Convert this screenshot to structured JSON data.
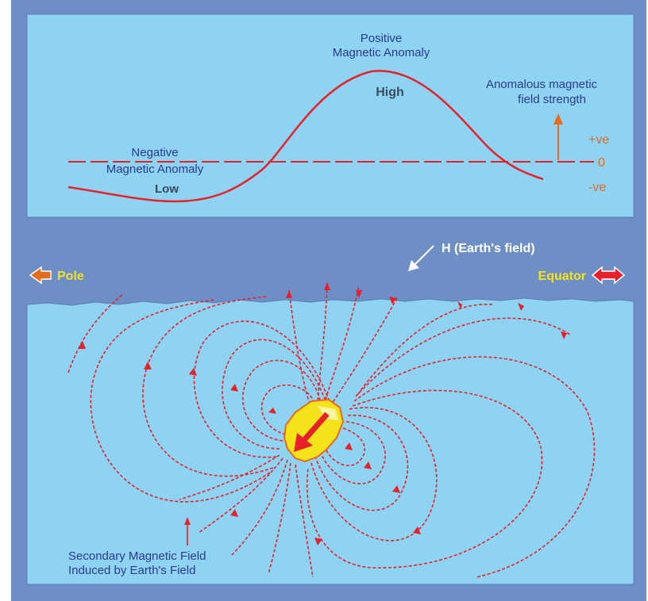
{
  "colors": {
    "frame": "#6e8fc6",
    "panel": "#8fd3f2",
    "curve": "#e8202a",
    "baseline": "#e8202a",
    "dark_text": "#2a3a8a",
    "white_text": "#ffffff",
    "yellow_text": "#f3e21c",
    "orange_label": "#e86a1e",
    "body_fill": "#f5e31a"
  },
  "top_panel": {
    "positive_line1": "Positive",
    "positive_line2": "Magnetic Anomaly",
    "high": "High",
    "negative_line1": "Negative",
    "negative_line2": "Magnetic Anomaly",
    "low": "Low",
    "axis_title_line1": "Anomalous magnetic",
    "axis_title_line2": "field strength",
    "plus": "+ve",
    "zero": "0",
    "minus": "-ve"
  },
  "middle": {
    "earth_field": "H (Earth's field)",
    "pole": "Pole",
    "equator": "Equator",
    "pole_arrow_icon": "left-arrow-icon",
    "equator_arrow_icon": "double-arrow-icon"
  },
  "bottom_panel": {
    "caption_line1": "Secondary Magnetic Field",
    "caption_line2": "Induced by Earth's Field"
  }
}
